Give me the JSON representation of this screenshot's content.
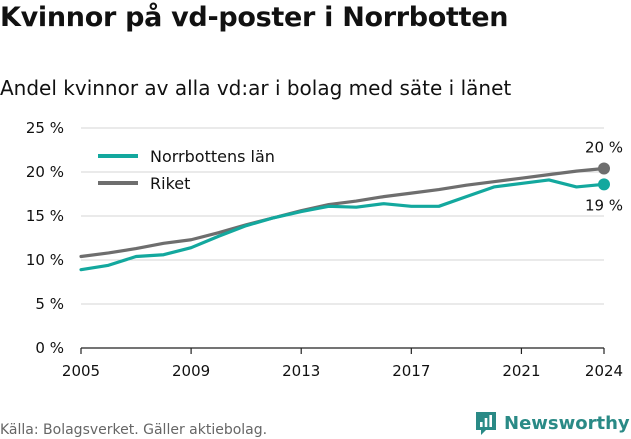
{
  "chart_data": {
    "type": "line",
    "title": "Kvinnor på vd-poster i Norrbotten",
    "subtitle": "Andel kvinnor av alla vd:ar i bolag med säte i länet",
    "x": [
      2005,
      2006,
      2007,
      2008,
      2009,
      2010,
      2011,
      2012,
      2013,
      2014,
      2015,
      2016,
      2017,
      2018,
      2019,
      2020,
      2021,
      2022,
      2023,
      2024
    ],
    "x_tick_labels": [
      "2005",
      "2009",
      "2013",
      "2017",
      "2021",
      "2024"
    ],
    "y_tick_labels": [
      "0 %",
      "5 %",
      "10 %",
      "15 %",
      "20 %",
      "25 %"
    ],
    "ylim": [
      0,
      25
    ],
    "xlim": [
      2005,
      2024
    ],
    "grid": true,
    "legend_position": "top-left",
    "series": [
      {
        "name": "Norrbottens län",
        "color": "#13a89e",
        "values": [
          8.9,
          9.4,
          10.4,
          10.6,
          11.4,
          12.7,
          13.9,
          14.8,
          15.5,
          16.1,
          16.0,
          16.4,
          16.1,
          16.1,
          17.2,
          18.3,
          18.7,
          19.1,
          18.3,
          18.6
        ],
        "end_label": "19 %"
      },
      {
        "name": "Riket",
        "color": "#6e6e6e",
        "values": [
          10.4,
          10.8,
          11.3,
          11.9,
          12.3,
          13.1,
          14.0,
          14.8,
          15.6,
          16.3,
          16.7,
          17.2,
          17.6,
          18.0,
          18.5,
          18.9,
          19.3,
          19.7,
          20.1,
          20.4
        ],
        "end_label": "20 %"
      }
    ]
  },
  "footer": {
    "source": "Källa: Bolagsverket. Gäller aktiebolag.",
    "brand": "Newsworthy"
  }
}
